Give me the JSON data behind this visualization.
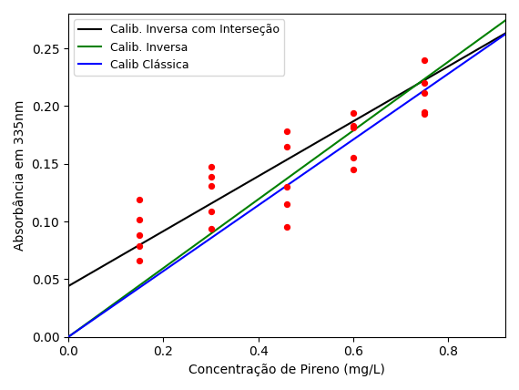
{
  "scatter_x": [
    0.15,
    0.15,
    0.15,
    0.15,
    0.15,
    0.3,
    0.3,
    0.3,
    0.3,
    0.3,
    0.46,
    0.46,
    0.46,
    0.46,
    0.46,
    0.6,
    0.6,
    0.6,
    0.6,
    0.6,
    0.75,
    0.75,
    0.75,
    0.75,
    0.75
  ],
  "scatter_y": [
    0.119,
    0.102,
    0.088,
    0.079,
    0.066,
    0.147,
    0.139,
    0.131,
    0.109,
    0.094,
    0.178,
    0.165,
    0.13,
    0.115,
    0.095,
    0.194,
    0.183,
    0.181,
    0.155,
    0.145,
    0.24,
    0.22,
    0.211,
    0.195,
    0.193
  ],
  "line_black_intercept": 0.044,
  "line_black_slope": 0.238,
  "line_green_intercept": 0.0,
  "line_green_slope": 0.298,
  "line_blue_intercept": 0.0,
  "line_blue_slope": 0.285,
  "xlabel": "Concentração de Pireno (mg/L)",
  "ylabel": "Absorbância em 335nm",
  "xlim": [
    0.0,
    0.92
  ],
  "ylim": [
    0.0,
    0.28
  ],
  "legend_black": "Calib. Inversa com Interseção",
  "legend_green": "Calib. Inversa",
  "legend_blue": "Calib Clássica",
  "scatter_color": "red",
  "scatter_size": 18,
  "linewidth": 1.5
}
